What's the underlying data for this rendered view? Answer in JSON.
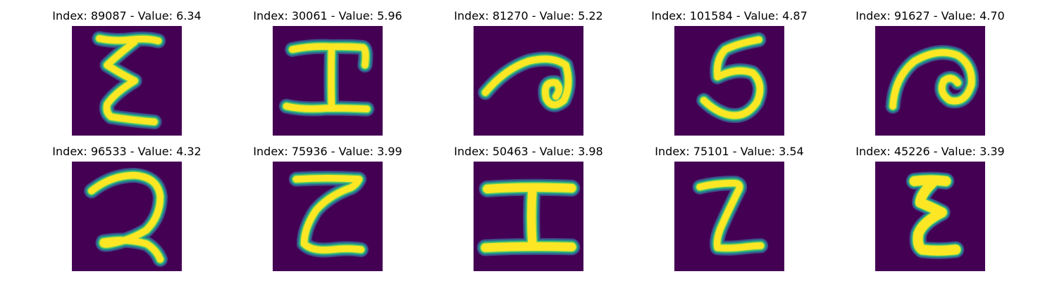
{
  "colors": {
    "background": "#440154",
    "stroke_core": "#fde725",
    "stroke_mid": "#5ec962",
    "stroke_edge": "#21918c",
    "stroke_outer": "#3b528b"
  },
  "panels": [
    {
      "title": "Index: 89087 - Value: 6.34",
      "glyph": "Σ-like handwritten character"
    },
    {
      "title": "Index: 30061 - Value: 5.96",
      "glyph": "I-like handwritten character"
    },
    {
      "title": "Index: 81270 - Value: 5.22",
      "glyph": "spiral curl handwritten character"
    },
    {
      "title": "Index: 101584 - Value: 4.87",
      "glyph": "5-like handwritten character"
    },
    {
      "title": "Index: 91627 - Value: 4.70",
      "glyph": "spiral curl handwritten character"
    },
    {
      "title": "Index: 96533 - Value: 4.32",
      "glyph": "2-like handwritten character"
    },
    {
      "title": "Index: 75936 - Value: 3.99",
      "glyph": "Z-like handwritten character"
    },
    {
      "title": "Index: 50463 - Value: 3.98",
      "glyph": "I-like handwritten character"
    },
    {
      "title": "Index: 75101 - Value: 3.54",
      "glyph": "Z-like handwritten character"
    },
    {
      "title": "Index: 45226 - Value: 3.39",
      "glyph": "Σ-like handwritten character"
    }
  ]
}
